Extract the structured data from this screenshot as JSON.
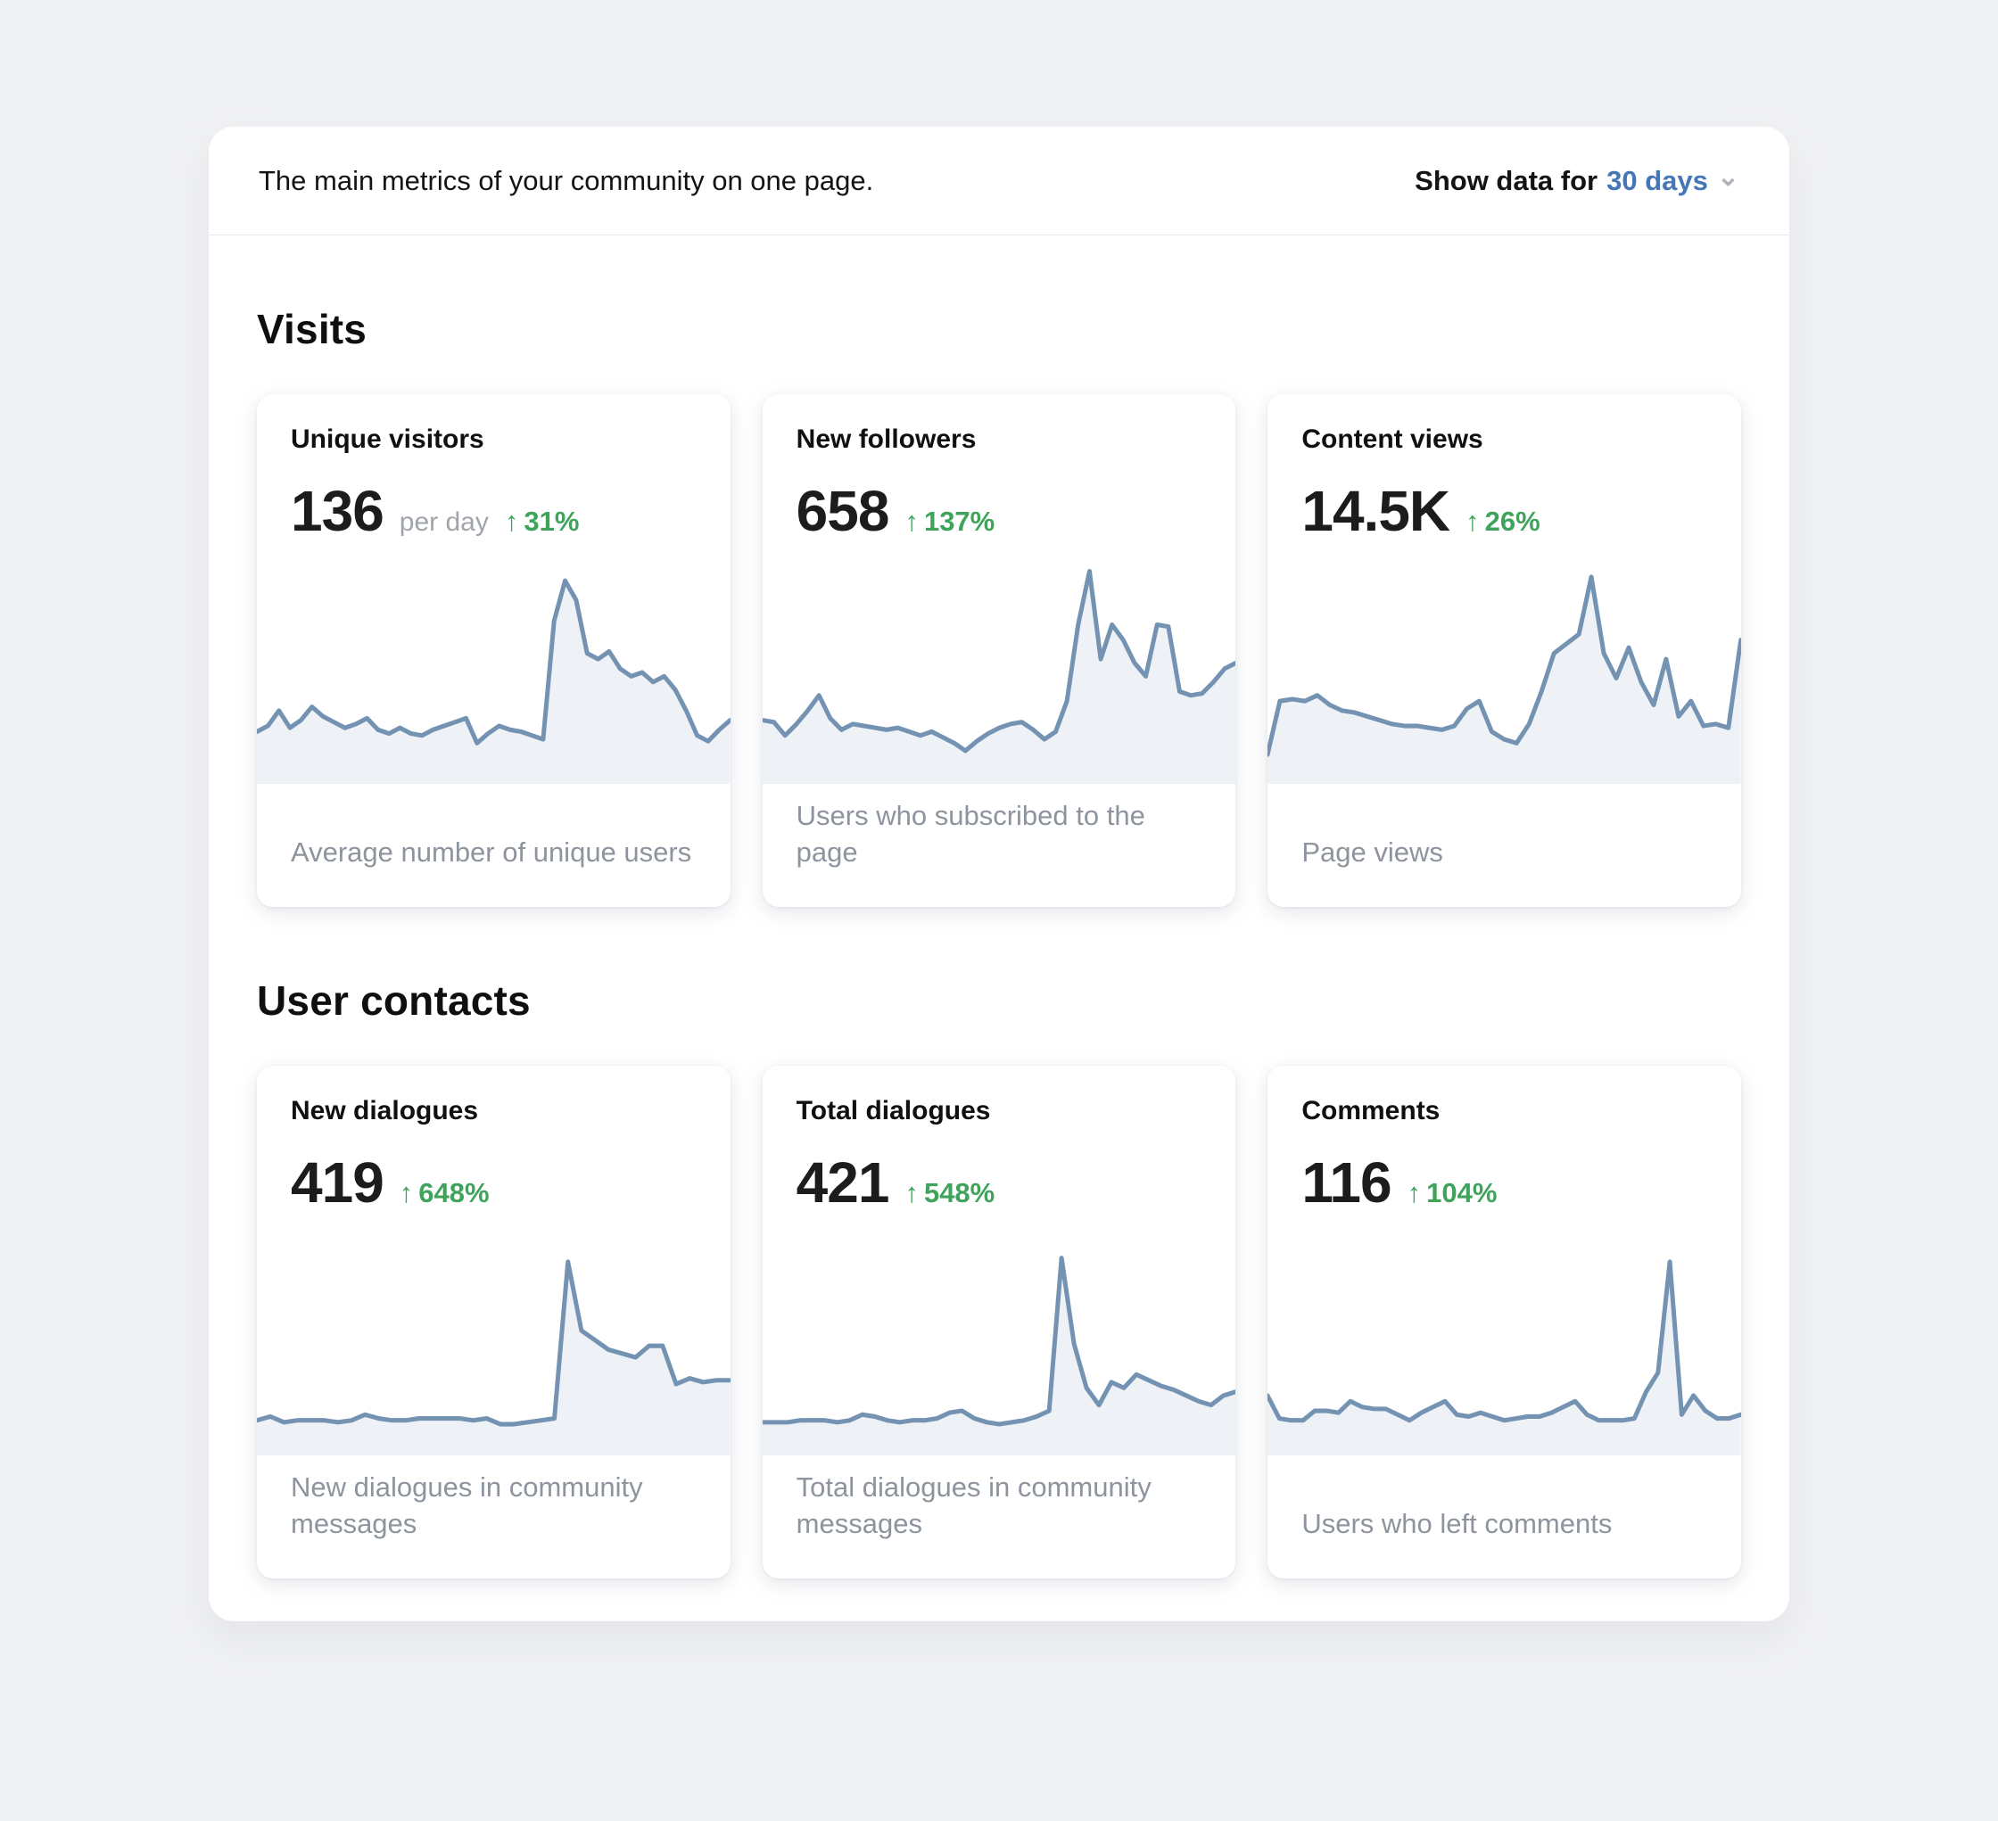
{
  "header": {
    "title": "The main metrics of your community on one page.",
    "filter_label": "Show data for",
    "filter_value": "30 days"
  },
  "icons": {
    "arrow_up": "↑",
    "chevron_down": "⌄"
  },
  "colors": {
    "accent_blue": "#4576b5",
    "positive_green": "#3fa35c",
    "chart_line": "#7493b3",
    "chart_fill": "#eef1f6"
  },
  "sections": [
    {
      "heading": "Visits",
      "cards": [
        {
          "title": "Unique visitors",
          "value": "136",
          "unit": "per day",
          "change": "31%",
          "caption": "Average number of unique users",
          "sparkline": [
            14,
            17,
            25,
            16,
            20,
            27,
            22,
            19,
            16,
            18,
            21,
            15,
            13,
            16,
            13,
            12,
            15,
            17,
            19,
            21,
            8,
            13,
            17,
            15,
            14,
            12,
            10,
            72,
            93,
            83,
            55,
            52,
            56,
            47,
            43,
            45,
            40,
            43,
            36,
            25,
            12,
            9,
            15,
            20
          ]
        },
        {
          "title": "New followers",
          "value": "658",
          "unit": "",
          "change": "137%",
          "caption": "Users who subscribed to the page",
          "sparkline": [
            20,
            19,
            12,
            18,
            25,
            33,
            21,
            15,
            18,
            17,
            16,
            15,
            16,
            14,
            12,
            14,
            11,
            8,
            4,
            9,
            13,
            16,
            18,
            19,
            15,
            10,
            14,
            30,
            70,
            98,
            52,
            70,
            62,
            50,
            43,
            70,
            69,
            35,
            33,
            34,
            40,
            47,
            50
          ]
        },
        {
          "title": "Content views",
          "value": "14.5K",
          "unit": "",
          "change": "26%",
          "caption": "Page views",
          "sparkline": [
            2,
            30,
            31,
            30,
            33,
            28,
            25,
            24,
            22,
            20,
            18,
            17,
            17,
            16,
            15,
            17,
            26,
            30,
            14,
            10,
            8,
            18,
            35,
            55,
            60,
            65,
            95,
            55,
            42,
            58,
            40,
            28,
            52,
            22,
            30,
            17,
            18,
            16,
            62
          ]
        }
      ]
    },
    {
      "heading": "User contacts",
      "cards": [
        {
          "title": "New dialogues",
          "value": "419",
          "unit": "",
          "change": "648%",
          "caption": "New dialogues in community messages",
          "sparkline": [
            5,
            7,
            4,
            5,
            5,
            5,
            4,
            5,
            8,
            6,
            5,
            5,
            6,
            6,
            6,
            6,
            5,
            6,
            3,
            3,
            4,
            5,
            6,
            88,
            52,
            47,
            42,
            40,
            38,
            44,
            44,
            24,
            27,
            25,
            26,
            26
          ]
        },
        {
          "title": "Total dialogues",
          "value": "421",
          "unit": "",
          "change": "548%",
          "caption": "Total dialogues in community messages",
          "sparkline": [
            4,
            4,
            4,
            5,
            5,
            5,
            4,
            5,
            8,
            7,
            5,
            4,
            5,
            5,
            6,
            9,
            10,
            6,
            4,
            3,
            4,
            5,
            7,
            10,
            90,
            45,
            22,
            13,
            25,
            22,
            29,
            26,
            23,
            21,
            18,
            15,
            13,
            18,
            20
          ]
        },
        {
          "title": "Comments",
          "value": "116",
          "unit": "",
          "change": "104%",
          "caption": "Users who left comments",
          "sparkline": [
            18,
            6,
            5,
            5,
            10,
            10,
            9,
            15,
            12,
            11,
            11,
            8,
            5,
            9,
            12,
            15,
            8,
            7,
            9,
            7,
            5,
            6,
            7,
            7,
            9,
            12,
            15,
            8,
            5,
            5,
            5,
            6,
            20,
            30,
            88,
            8,
            18,
            10,
            6,
            6,
            8
          ]
        }
      ]
    }
  ],
  "chart_data": {
    "type": "line",
    "note": "six 30-day sparklines; values are relative 0-100 scale, see sections[].cards[].sparkline"
  }
}
